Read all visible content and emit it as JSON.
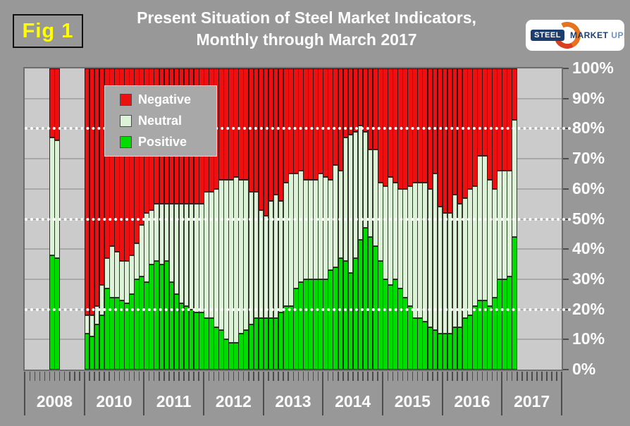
{
  "header": {
    "fig_label": "Fig 1",
    "title_line1": "Present Situation of Steel Market Indicators,",
    "title_line2": "Monthly through March 2017",
    "logo": {
      "steel": "STEEL",
      "market": "MARKET",
      "update": "UPDATE"
    }
  },
  "colors": {
    "background": "#989898",
    "plot_background": "#cbcbcb",
    "gridline": "#a9a9a9",
    "guide_dotted": "#ffffff",
    "negative": "#ee1010",
    "neutral": "#dcf3d7",
    "positive": "#00dc00",
    "title_text": "#ffffff",
    "fig_label_text": "#ffff00",
    "axis_text": "#ffffff",
    "logo_navy": "#1c3e6e",
    "logo_light_blue": "#6e93bf",
    "logo_orange": "#e8731f"
  },
  "chart_data": {
    "type": "bar",
    "stacked": true,
    "unit": "percent of survey responses",
    "title": "Present Situation of Steel Market Indicators, Monthly through March 2017",
    "ylim": [
      0,
      100
    ],
    "grid_step": 10,
    "dotted_guides": [
      20,
      50,
      80
    ],
    "yticks": [
      "0%",
      "10%",
      "20%",
      "30%",
      "40%",
      "50%",
      "60%",
      "70%",
      "80%",
      "90%",
      "100%"
    ],
    "years_axis": [
      "2008",
      "2010",
      "2011",
      "2012",
      "2013",
      "2014",
      "2015",
      "2016",
      "2017"
    ],
    "legend_position": "top-left-inside",
    "series": [
      {
        "name": "Negative",
        "color": "#ee1010"
      },
      {
        "name": "Neutral",
        "color": "#dcf3d7"
      },
      {
        "name": "Positive",
        "color": "#00dc00"
      }
    ],
    "columns": [
      "year",
      "month",
      "positive_pct",
      "neutral_pct",
      "negative_pct"
    ],
    "points": [
      [
        2008,
        6,
        38,
        39,
        23
      ],
      [
        2008,
        7,
        37,
        39,
        24
      ],
      [
        2010,
        1,
        12,
        6,
        82
      ],
      [
        2010,
        2,
        11,
        7,
        82
      ],
      [
        2010,
        3,
        15,
        6,
        79
      ],
      [
        2010,
        4,
        18,
        10,
        72
      ],
      [
        2010,
        5,
        27,
        10,
        63
      ],
      [
        2010,
        6,
        24,
        17,
        59
      ],
      [
        2010,
        7,
        24,
        15,
        61
      ],
      [
        2010,
        8,
        23,
        13,
        64
      ],
      [
        2010,
        9,
        22,
        14,
        64
      ],
      [
        2010,
        10,
        25,
        13,
        62
      ],
      [
        2010,
        11,
        30,
        12,
        58
      ],
      [
        2010,
        12,
        31,
        17,
        52
      ],
      [
        2011,
        1,
        29,
        23,
        48
      ],
      [
        2011,
        2,
        35,
        18,
        47
      ],
      [
        2011,
        3,
        36,
        19,
        45
      ],
      [
        2011,
        4,
        35,
        20,
        45
      ],
      [
        2011,
        5,
        36,
        19,
        45
      ],
      [
        2011,
        6,
        29,
        26,
        45
      ],
      [
        2011,
        7,
        25,
        30,
        45
      ],
      [
        2011,
        8,
        22,
        33,
        45
      ],
      [
        2011,
        9,
        21,
        34,
        45
      ],
      [
        2011,
        10,
        20,
        35,
        45
      ],
      [
        2011,
        11,
        19,
        36,
        45
      ],
      [
        2011,
        12,
        19,
        36,
        45
      ],
      [
        2012,
        1,
        17,
        42,
        41
      ],
      [
        2012,
        2,
        17,
        42,
        41
      ],
      [
        2012,
        3,
        14,
        46,
        40
      ],
      [
        2012,
        4,
        13,
        50,
        37
      ],
      [
        2012,
        5,
        10,
        53,
        37
      ],
      [
        2012,
        6,
        9,
        54,
        37
      ],
      [
        2012,
        7,
        9,
        55,
        36
      ],
      [
        2012,
        8,
        12,
        51,
        37
      ],
      [
        2012,
        9,
        13,
        50,
        37
      ],
      [
        2012,
        10,
        15,
        44,
        41
      ],
      [
        2012,
        11,
        17,
        42,
        41
      ],
      [
        2012,
        12,
        17,
        36,
        47
      ],
      [
        2013,
        1,
        17,
        34,
        49
      ],
      [
        2013,
        2,
        17,
        39,
        44
      ],
      [
        2013,
        3,
        17,
        41,
        42
      ],
      [
        2013,
        4,
        19,
        37,
        44
      ],
      [
        2013,
        5,
        21,
        41,
        38
      ],
      [
        2013,
        6,
        21,
        44,
        35
      ],
      [
        2013,
        7,
        27,
        38,
        35
      ],
      [
        2013,
        8,
        29,
        37,
        34
      ],
      [
        2013,
        9,
        30,
        33,
        37
      ],
      [
        2013,
        10,
        30,
        33,
        37
      ],
      [
        2013,
        11,
        30,
        33,
        37
      ],
      [
        2013,
        12,
        30,
        35,
        35
      ],
      [
        2014,
        1,
        30,
        34,
        36
      ],
      [
        2014,
        2,
        33,
        30,
        37
      ],
      [
        2014,
        3,
        34,
        34,
        32
      ],
      [
        2014,
        4,
        37,
        29,
        34
      ],
      [
        2014,
        5,
        36,
        41,
        23
      ],
      [
        2014,
        6,
        32,
        46,
        22
      ],
      [
        2014,
        7,
        37,
        42,
        21
      ],
      [
        2014,
        8,
        43,
        38,
        19
      ],
      [
        2014,
        9,
        47,
        32,
        21
      ],
      [
        2014,
        10,
        44,
        29,
        27
      ],
      [
        2014,
        11,
        41,
        32,
        27
      ],
      [
        2014,
        12,
        36,
        26,
        38
      ],
      [
        2015,
        1,
        30,
        31,
        39
      ],
      [
        2015,
        2,
        28,
        36,
        36
      ],
      [
        2015,
        3,
        30,
        32,
        38
      ],
      [
        2015,
        4,
        27,
        33,
        40
      ],
      [
        2015,
        5,
        24,
        36,
        40
      ],
      [
        2015,
        6,
        21,
        40,
        39
      ],
      [
        2015,
        7,
        17,
        45,
        38
      ],
      [
        2015,
        8,
        17,
        45,
        38
      ],
      [
        2015,
        9,
        16,
        46,
        38
      ],
      [
        2015,
        10,
        14,
        46,
        40
      ],
      [
        2015,
        11,
        13,
        52,
        35
      ],
      [
        2015,
        12,
        12,
        42,
        46
      ],
      [
        2016,
        1,
        12,
        40,
        48
      ],
      [
        2016,
        2,
        12,
        40,
        48
      ],
      [
        2016,
        3,
        14,
        44,
        42
      ],
      [
        2016,
        4,
        14,
        41,
        45
      ],
      [
        2016,
        5,
        17,
        40,
        43
      ],
      [
        2016,
        6,
        18,
        42,
        40
      ],
      [
        2016,
        7,
        21,
        40,
        39
      ],
      [
        2016,
        8,
        23,
        48,
        29
      ],
      [
        2016,
        9,
        23,
        48,
        29
      ],
      [
        2016,
        10,
        21,
        42,
        37
      ],
      [
        2016,
        11,
        24,
        36,
        40
      ],
      [
        2016,
        12,
        30,
        36,
        34
      ],
      [
        2017,
        1,
        30,
        36,
        34
      ],
      [
        2017,
        2,
        31,
        35,
        34
      ],
      [
        2017,
        3,
        44,
        39,
        17
      ]
    ]
  }
}
